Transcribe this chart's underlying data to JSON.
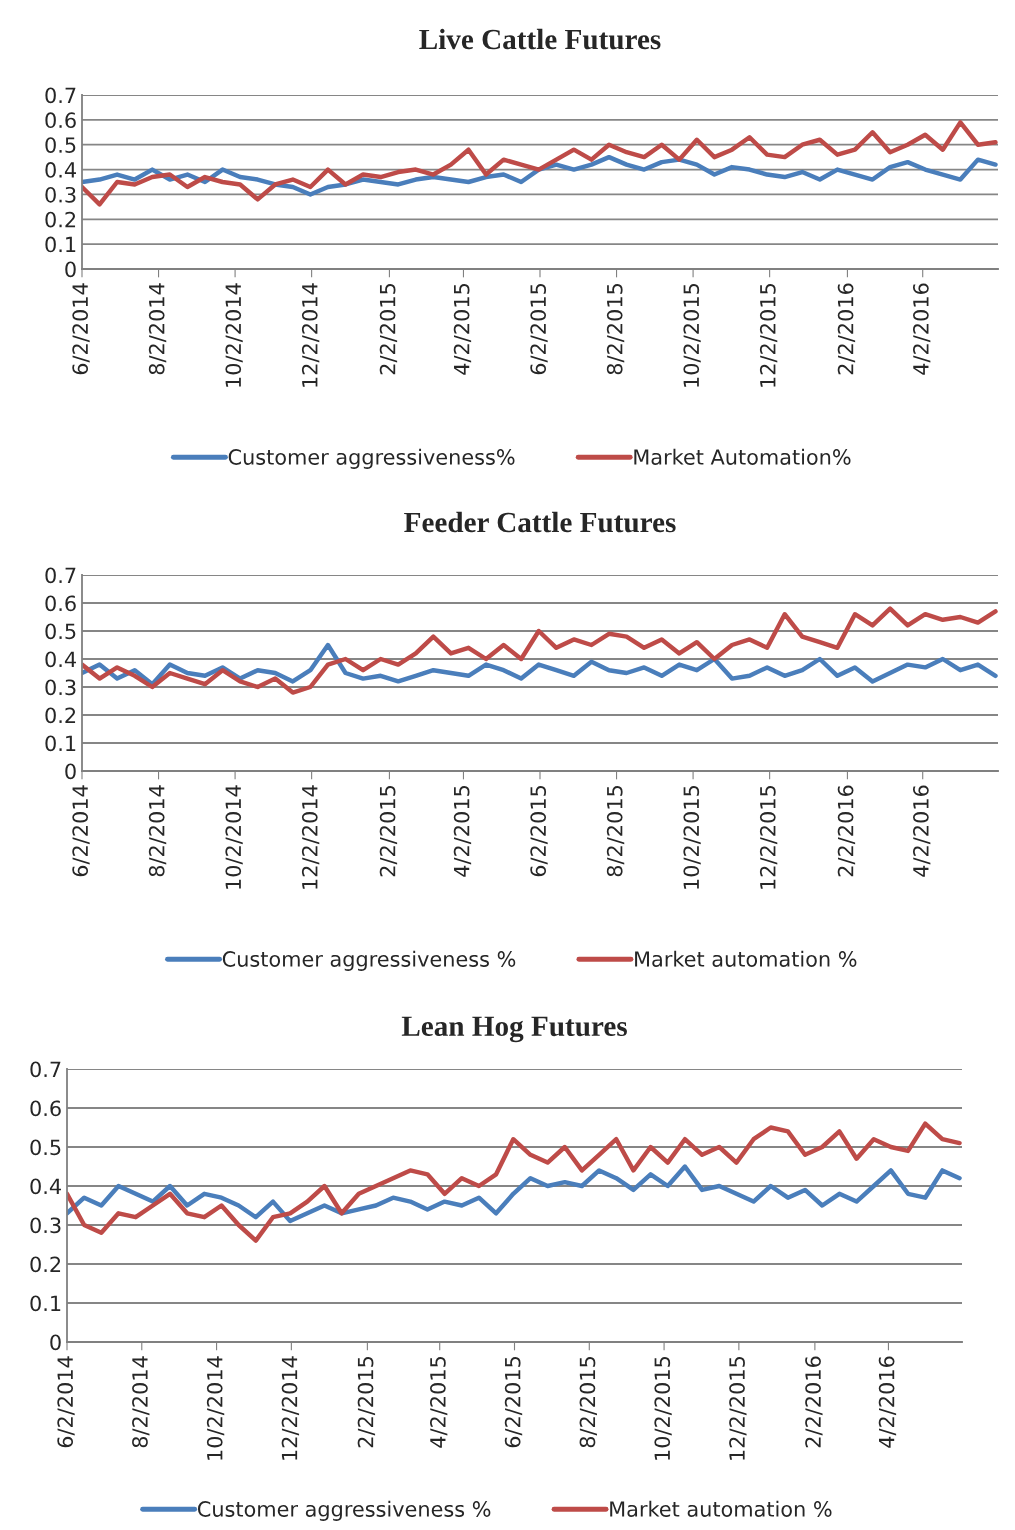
{
  "chart_data": [
    {
      "type": "line",
      "title": "Live Cattle Futures",
      "x": [
        "2014-06-02",
        "2014-06-16",
        "2014-06-30",
        "2014-07-14",
        "2014-07-28",
        "2014-08-11",
        "2014-08-25",
        "2014-09-08",
        "2014-09-22",
        "2014-10-06",
        "2014-10-20",
        "2014-11-03",
        "2014-11-17",
        "2014-12-01",
        "2014-12-15",
        "2014-12-29",
        "2015-01-12",
        "2015-01-26",
        "2015-02-09",
        "2015-02-23",
        "2015-03-09",
        "2015-03-23",
        "2015-04-06",
        "2015-04-20",
        "2015-05-04",
        "2015-05-18",
        "2015-06-01",
        "2015-06-15",
        "2015-06-29",
        "2015-07-13",
        "2015-07-27",
        "2015-08-10",
        "2015-08-24",
        "2015-09-07",
        "2015-09-21",
        "2015-10-05",
        "2015-10-19",
        "2015-11-02",
        "2015-11-16",
        "2015-11-30",
        "2015-12-14",
        "2015-12-28",
        "2016-01-11",
        "2016-01-25",
        "2016-02-08",
        "2016-02-22",
        "2016-03-07",
        "2016-03-21",
        "2016-04-04",
        "2016-04-18",
        "2016-05-02",
        "2016-05-16",
        "2016-05-30"
      ],
      "series": [
        {
          "name": "Customer aggressiveness%",
          "color": "#4a7ebb",
          "values": [
            0.35,
            0.36,
            0.38,
            0.36,
            0.4,
            0.36,
            0.38,
            0.35,
            0.4,
            0.37,
            0.36,
            0.34,
            0.33,
            0.3,
            0.33,
            0.34,
            0.36,
            0.35,
            0.34,
            0.36,
            0.37,
            0.36,
            0.35,
            0.37,
            0.38,
            0.35,
            0.4,
            0.42,
            0.4,
            0.42,
            0.45,
            0.42,
            0.4,
            0.43,
            0.44,
            0.42,
            0.38,
            0.41,
            0.4,
            0.38,
            0.37,
            0.39,
            0.36,
            0.4,
            0.38,
            0.36,
            0.41,
            0.43,
            0.4,
            0.38,
            0.36,
            0.44,
            0.42
          ]
        },
        {
          "name": "Market Automation%",
          "color": "#be4b48",
          "values": [
            0.33,
            0.26,
            0.35,
            0.34,
            0.37,
            0.38,
            0.33,
            0.37,
            0.35,
            0.34,
            0.28,
            0.34,
            0.36,
            0.33,
            0.4,
            0.34,
            0.38,
            0.37,
            0.39,
            0.4,
            0.38,
            0.42,
            0.48,
            0.38,
            0.44,
            0.42,
            0.4,
            0.44,
            0.48,
            0.44,
            0.5,
            0.47,
            0.45,
            0.5,
            0.44,
            0.52,
            0.45,
            0.48,
            0.53,
            0.46,
            0.45,
            0.5,
            0.52,
            0.46,
            0.48,
            0.55,
            0.47,
            0.5,
            0.54,
            0.48,
            0.59,
            0.5,
            0.51
          ]
        }
      ],
      "xlim": [
        "2014-06-02",
        "2016-06-01"
      ],
      "xticks": [
        {
          "value": "2014-06-02",
          "label": "6/2/2014"
        },
        {
          "value": "2014-08-02",
          "label": "8/2/2014"
        },
        {
          "value": "2014-10-02",
          "label": "10/2/2014"
        },
        {
          "value": "2014-12-02",
          "label": "12/2/2014"
        },
        {
          "value": "2015-02-02",
          "label": "2/2/2015"
        },
        {
          "value": "2015-04-02",
          "label": "4/2/2015"
        },
        {
          "value": "2015-06-02",
          "label": "6/2/2015"
        },
        {
          "value": "2015-08-02",
          "label": "8/2/2015"
        },
        {
          "value": "2015-10-02",
          "label": "10/2/2015"
        },
        {
          "value": "2015-12-02",
          "label": "12/2/2015"
        },
        {
          "value": "2016-02-02",
          "label": "2/2/2016"
        },
        {
          "value": "2016-04-02",
          "label": "4/2/2016"
        }
      ],
      "ylim": [
        0,
        0.7
      ],
      "yticks": [
        0,
        0.1,
        0.2,
        0.3,
        0.4,
        0.5,
        0.6,
        0.7
      ],
      "grid": "y",
      "legend": "bottom",
      "marker": "none",
      "line_style": "solid"
    },
    {
      "type": "line",
      "title": "Feeder Cattle Futures",
      "x": [
        "2014-06-02",
        "2014-06-16",
        "2014-06-30",
        "2014-07-14",
        "2014-07-28",
        "2014-08-11",
        "2014-08-25",
        "2014-09-08",
        "2014-09-22",
        "2014-10-06",
        "2014-10-20",
        "2014-11-03",
        "2014-11-17",
        "2014-12-01",
        "2014-12-15",
        "2014-12-29",
        "2015-01-12",
        "2015-01-26",
        "2015-02-09",
        "2015-02-23",
        "2015-03-09",
        "2015-03-23",
        "2015-04-06",
        "2015-04-20",
        "2015-05-04",
        "2015-05-18",
        "2015-06-01",
        "2015-06-15",
        "2015-06-29",
        "2015-07-13",
        "2015-07-27",
        "2015-08-10",
        "2015-08-24",
        "2015-09-07",
        "2015-09-21",
        "2015-10-05",
        "2015-10-19",
        "2015-11-02",
        "2015-11-16",
        "2015-11-30",
        "2015-12-14",
        "2015-12-28",
        "2016-01-11",
        "2016-01-25",
        "2016-02-08",
        "2016-02-22",
        "2016-03-07",
        "2016-03-21",
        "2016-04-04",
        "2016-04-18",
        "2016-05-02",
        "2016-05-16",
        "2016-05-30"
      ],
      "series": [
        {
          "name": "Customer aggressiveness %",
          "color": "#4a7ebb",
          "values": [
            0.35,
            0.38,
            0.33,
            0.36,
            0.31,
            0.38,
            0.35,
            0.34,
            0.37,
            0.33,
            0.36,
            0.35,
            0.32,
            0.36,
            0.45,
            0.35,
            0.33,
            0.34,
            0.32,
            0.34,
            0.36,
            0.35,
            0.34,
            0.38,
            0.36,
            0.33,
            0.38,
            0.36,
            0.34,
            0.39,
            0.36,
            0.35,
            0.37,
            0.34,
            0.38,
            0.36,
            0.4,
            0.33,
            0.34,
            0.37,
            0.34,
            0.36,
            0.4,
            0.34,
            0.37,
            0.32,
            0.35,
            0.38,
            0.37,
            0.4,
            0.36,
            0.38,
            0.34
          ]
        },
        {
          "name": "Market automation %",
          "color": "#be4b48",
          "values": [
            0.38,
            0.33,
            0.37,
            0.34,
            0.3,
            0.35,
            0.33,
            0.31,
            0.36,
            0.32,
            0.3,
            0.33,
            0.28,
            0.3,
            0.38,
            0.4,
            0.36,
            0.4,
            0.38,
            0.42,
            0.48,
            0.42,
            0.44,
            0.4,
            0.45,
            0.4,
            0.5,
            0.44,
            0.47,
            0.45,
            0.49,
            0.48,
            0.44,
            0.47,
            0.42,
            0.46,
            0.4,
            0.45,
            0.47,
            0.44,
            0.56,
            0.48,
            0.46,
            0.44,
            0.56,
            0.52,
            0.58,
            0.52,
            0.56,
            0.54,
            0.55,
            0.53,
            0.57
          ]
        }
      ],
      "xlim": [
        "2014-06-02",
        "2016-06-01"
      ],
      "xticks": [
        {
          "value": "2014-06-02",
          "label": "6/2/2014"
        },
        {
          "value": "2014-08-02",
          "label": "8/2/2014"
        },
        {
          "value": "2014-10-02",
          "label": "10/2/2014"
        },
        {
          "value": "2014-12-02",
          "label": "12/2/2014"
        },
        {
          "value": "2015-02-02",
          "label": "2/2/2015"
        },
        {
          "value": "2015-04-02",
          "label": "4/2/2015"
        },
        {
          "value": "2015-06-02",
          "label": "6/2/2015"
        },
        {
          "value": "2015-08-02",
          "label": "8/2/2015"
        },
        {
          "value": "2015-10-02",
          "label": "10/2/2015"
        },
        {
          "value": "2015-12-02",
          "label": "12/2/2015"
        },
        {
          "value": "2016-02-02",
          "label": "2/2/2016"
        },
        {
          "value": "2016-04-02",
          "label": "4/2/2016"
        }
      ],
      "ylim": [
        0,
        0.7
      ],
      "yticks": [
        0,
        0.1,
        0.2,
        0.3,
        0.4,
        0.5,
        0.6,
        0.7
      ],
      "grid": "y",
      "legend": "bottom",
      "marker": "none",
      "line_style": "solid"
    },
    {
      "type": "line",
      "title": "Lean Hog Futures",
      "x": [
        "2014-06-02",
        "2014-06-16",
        "2014-06-30",
        "2014-07-14",
        "2014-07-28",
        "2014-08-11",
        "2014-08-25",
        "2014-09-08",
        "2014-09-22",
        "2014-10-06",
        "2014-10-20",
        "2014-11-03",
        "2014-11-17",
        "2014-12-01",
        "2014-12-15",
        "2014-12-29",
        "2015-01-12",
        "2015-01-26",
        "2015-02-09",
        "2015-02-23",
        "2015-03-09",
        "2015-03-23",
        "2015-04-06",
        "2015-04-20",
        "2015-05-04",
        "2015-05-18",
        "2015-06-01",
        "2015-06-15",
        "2015-06-29",
        "2015-07-13",
        "2015-07-27",
        "2015-08-10",
        "2015-08-24",
        "2015-09-07",
        "2015-09-21",
        "2015-10-05",
        "2015-10-19",
        "2015-11-02",
        "2015-11-16",
        "2015-11-30",
        "2015-12-14",
        "2015-12-28",
        "2016-01-11",
        "2016-01-25",
        "2016-02-08",
        "2016-02-22",
        "2016-03-07",
        "2016-03-21",
        "2016-04-04",
        "2016-04-18",
        "2016-05-02",
        "2016-05-16",
        "2016-05-30"
      ],
      "series": [
        {
          "name": "Customer aggressiveness %",
          "color": "#4a7ebb",
          "values": [
            0.33,
            0.37,
            0.35,
            0.4,
            0.38,
            0.36,
            0.4,
            0.35,
            0.38,
            0.37,
            0.35,
            0.32,
            0.36,
            0.31,
            0.33,
            0.35,
            0.33,
            0.34,
            0.35,
            0.37,
            0.36,
            0.34,
            0.36,
            0.35,
            0.37,
            0.33,
            0.38,
            0.42,
            0.4,
            0.41,
            0.4,
            0.44,
            0.42,
            0.39,
            0.43,
            0.4,
            0.45,
            0.39,
            0.4,
            0.38,
            0.36,
            0.4,
            0.37,
            0.39,
            0.35,
            0.38,
            0.36,
            0.4,
            0.44,
            0.38,
            0.37,
            0.44,
            0.42
          ]
        },
        {
          "name": "Market automation %",
          "color": "#be4b48",
          "values": [
            0.38,
            0.3,
            0.28,
            0.33,
            0.32,
            0.35,
            0.38,
            0.33,
            0.32,
            0.35,
            0.3,
            0.26,
            0.32,
            0.33,
            0.36,
            0.4,
            0.33,
            0.38,
            0.4,
            0.42,
            0.44,
            0.43,
            0.38,
            0.42,
            0.4,
            0.43,
            0.52,
            0.48,
            0.46,
            0.5,
            0.44,
            0.48,
            0.52,
            0.44,
            0.5,
            0.46,
            0.52,
            0.48,
            0.5,
            0.46,
            0.52,
            0.55,
            0.54,
            0.48,
            0.5,
            0.54,
            0.47,
            0.52,
            0.5,
            0.49,
            0.56,
            0.52,
            0.51
          ]
        }
      ],
      "xlim": [
        "2014-06-02",
        "2016-06-01"
      ],
      "xticks": [
        {
          "value": "2014-06-02",
          "label": "6/2/2014"
        },
        {
          "value": "2014-08-02",
          "label": "8/2/2014"
        },
        {
          "value": "2014-10-02",
          "label": "10/2/2014"
        },
        {
          "value": "2014-12-02",
          "label": "12/2/2014"
        },
        {
          "value": "2015-02-02",
          "label": "2/2/2015"
        },
        {
          "value": "2015-04-02",
          "label": "4/2/2015"
        },
        {
          "value": "2015-06-02",
          "label": "6/2/2015"
        },
        {
          "value": "2015-08-02",
          "label": "8/2/2015"
        },
        {
          "value": "2015-10-02",
          "label": "10/2/2015"
        },
        {
          "value": "2015-12-02",
          "label": "12/2/2015"
        },
        {
          "value": "2016-02-02",
          "label": "2/2/2016"
        },
        {
          "value": "2016-04-02",
          "label": "4/2/2016"
        }
      ],
      "ylim": [
        0,
        0.7
      ],
      "yticks": [
        0,
        0.1,
        0.2,
        0.3,
        0.4,
        0.5,
        0.6,
        0.7
      ],
      "grid": "y",
      "legend": "bottom",
      "marker": "none",
      "line_style": "solid"
    }
  ]
}
